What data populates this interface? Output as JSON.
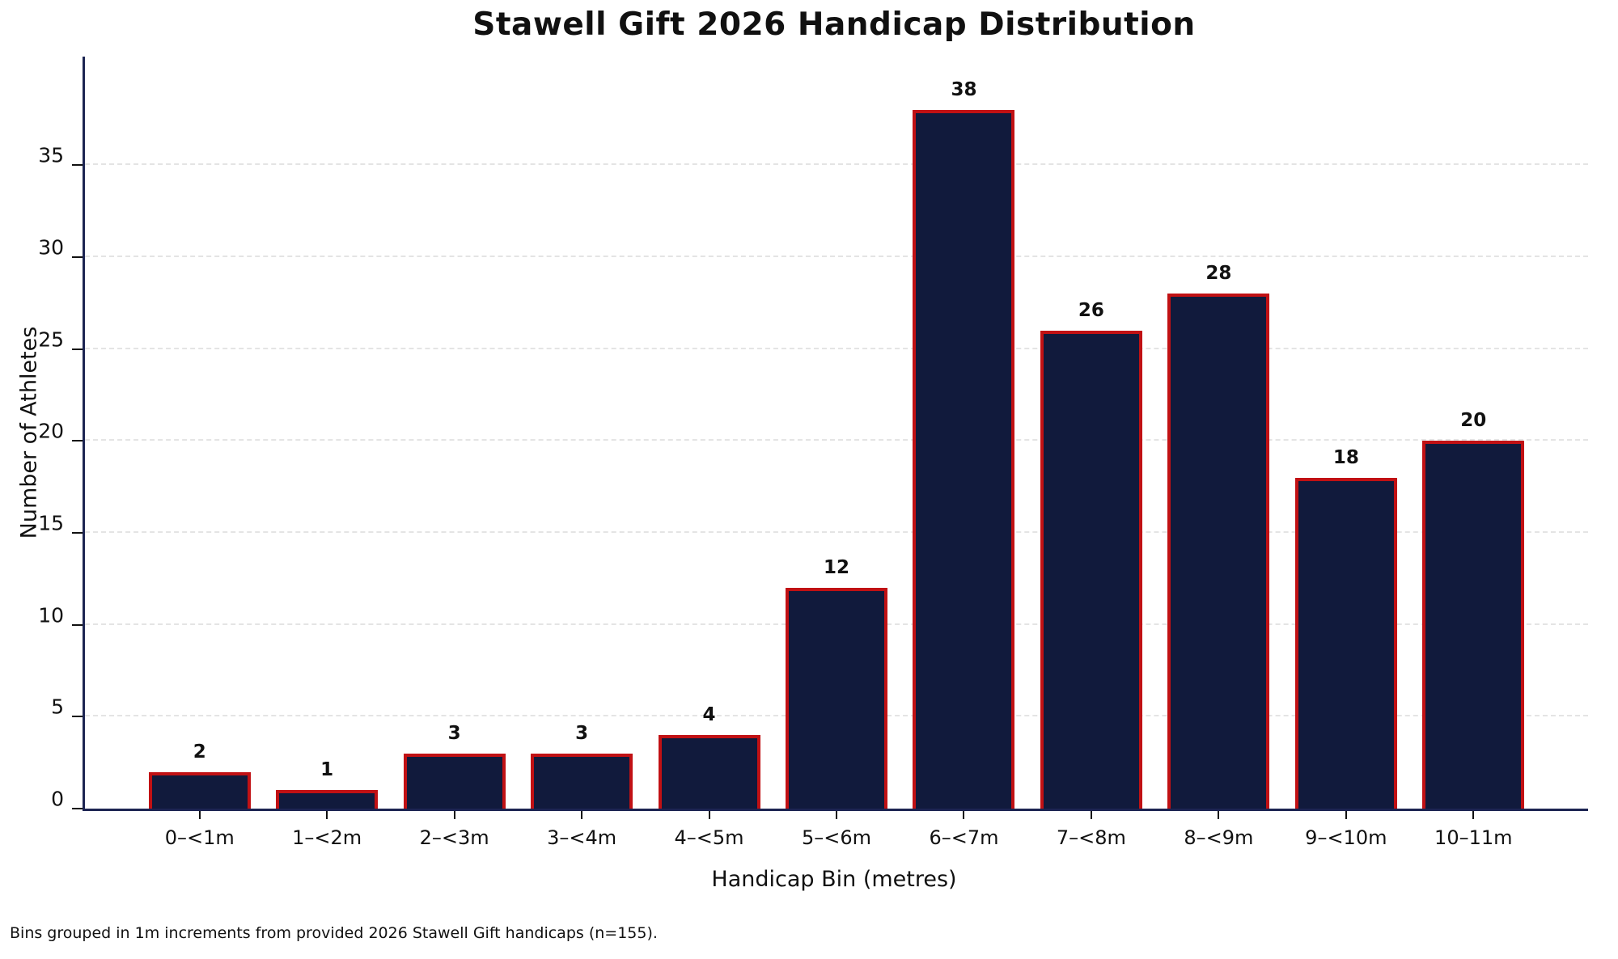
{
  "title": "Stawell Gift 2026 Handicap Distribution",
  "footnote": "Bins grouped in 1m increments from provided 2026 Stawell Gift handicaps (n=155).",
  "chart_data": {
    "type": "bar",
    "title": "Stawell Gift 2026 Handicap Distribution",
    "categories": [
      "0–<1m",
      "1–<2m",
      "2–<3m",
      "3–<4m",
      "4–<5m",
      "5–<6m",
      "6–<7m",
      "7–<8m",
      "8–<9m",
      "9–<10m",
      "10–11m"
    ],
    "values": [
      2,
      1,
      3,
      3,
      4,
      12,
      38,
      26,
      28,
      18,
      20
    ],
    "xlabel": "Handicap Bin (metres)",
    "ylabel": "Number of Athletes",
    "yticks": [
      0,
      5,
      10,
      15,
      20,
      25,
      30,
      35
    ],
    "ylim": [
      0,
      40.9
    ],
    "xlim": [
      -0.9,
      10.9
    ],
    "bar_width_fraction": 0.8,
    "grid": "horizontal-dashed",
    "legend": "none",
    "value_labels_shown": true,
    "total_n": 155,
    "colors": {
      "bar_fill": "#111a3c",
      "bar_edge": "#c11114",
      "axis_spine": "#1c2452",
      "gridline": "#e4e4e4",
      "text": "#111111"
    }
  }
}
